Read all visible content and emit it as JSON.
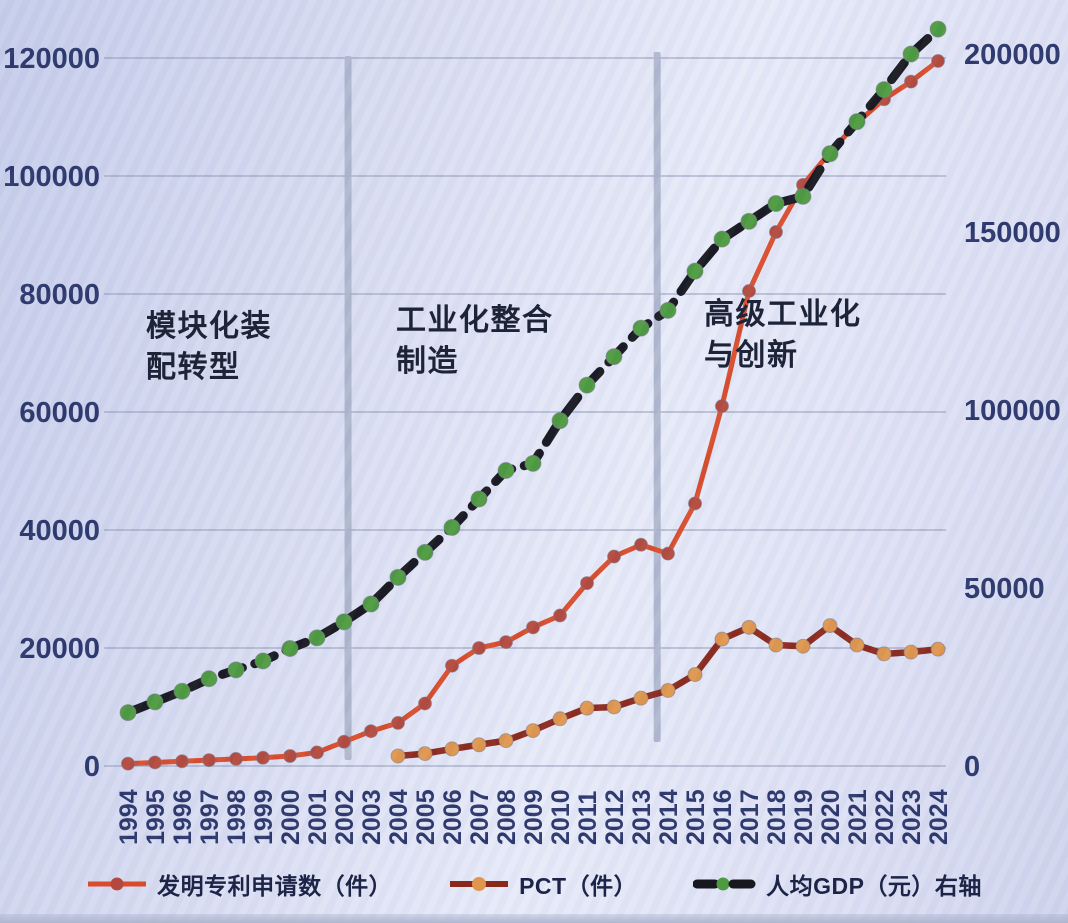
{
  "chart_data": {
    "type": "line",
    "title": "",
    "x": [
      "1994",
      "1995",
      "1996",
      "1997",
      "1998",
      "1999",
      "2000",
      "2001",
      "2002",
      "2003",
      "2004",
      "2005",
      "2006",
      "2007",
      "2008",
      "2009",
      "2010",
      "2011",
      "2012",
      "2013",
      "2014",
      "2015",
      "2016",
      "2017",
      "2018",
      "2019",
      "2020",
      "2021",
      "2022",
      "2023",
      "2024"
    ],
    "series": [
      {
        "name": "发明专利申请数（件）",
        "axis": "left",
        "style": "solid",
        "color": "#d84b2b",
        "marker_color": "#b4483c",
        "values": [
          400,
          600,
          800,
          1000,
          1200,
          1400,
          1700,
          2300,
          4100,
          5900,
          7300,
          10600,
          17000,
          20000,
          21000,
          23500,
          25500,
          31000,
          35500,
          37500,
          36000,
          44500,
          61000,
          80500,
          90500,
          98500,
          104000,
          109000,
          113000,
          116000,
          119500
        ]
      },
      {
        "name": "PCT（件）",
        "axis": "left",
        "style": "solid",
        "color": "#8a281c",
        "marker_color": "#e0964c",
        "values": [
          null,
          null,
          null,
          null,
          null,
          null,
          null,
          null,
          null,
          null,
          1700,
          2100,
          2900,
          3600,
          4300,
          6000,
          8000,
          9800,
          10000,
          11500,
          12800,
          15500,
          21500,
          23500,
          20500,
          20300,
          23800,
          20500,
          19000,
          19300,
          19800
        ]
      },
      {
        "name": "人均GDP（元）右轴",
        "axis": "right",
        "style": "dashed",
        "color": "#17171f",
        "marker_color": "#4d9a40",
        "values": [
          15000,
          18000,
          21000,
          24500,
          27000,
          29500,
          33000,
          36000,
          40500,
          45500,
          53000,
          60000,
          67000,
          75000,
          83000,
          85000,
          97000,
          107000,
          115000,
          123000,
          128000,
          139000,
          148000,
          153000,
          158000,
          160000,
          172000,
          181000,
          190000,
          200000,
          207000
        ]
      }
    ],
    "left_axis": {
      "ticks": [
        0,
        20000,
        40000,
        60000,
        80000,
        100000,
        120000
      ],
      "max": 120000
    },
    "right_axis": {
      "ticks": [
        0,
        50000,
        100000,
        150000,
        200000
      ],
      "max": 200000
    },
    "x_axis": {
      "label_rotation": -90
    },
    "grid": "horizontal",
    "legend_position": "bottom",
    "dividers": [
      2002.15,
      2013.6
    ],
    "annotations": [
      {
        "line1": "模块化装",
        "line2": "配转型",
        "x": 146,
        "y": 306
      },
      {
        "line1": "工业化整合",
        "line2": "制造",
        "x": 396,
        "y": 300
      },
      {
        "line1": "高级工业化",
        "line2": "与创新",
        "x": 704,
        "y": 294
      }
    ],
    "colors": {
      "grid": "#9099b4",
      "axis_text": "#2a356b",
      "annotation_text": "#1d2438",
      "divider": "#aab3ca",
      "legend_text": "#1c2447"
    }
  },
  "legend": {
    "items": [
      {
        "label": "发明专利申请数（件）"
      },
      {
        "label": "PCT（件）"
      },
      {
        "label": "人均GDP（元）右轴"
      }
    ]
  }
}
